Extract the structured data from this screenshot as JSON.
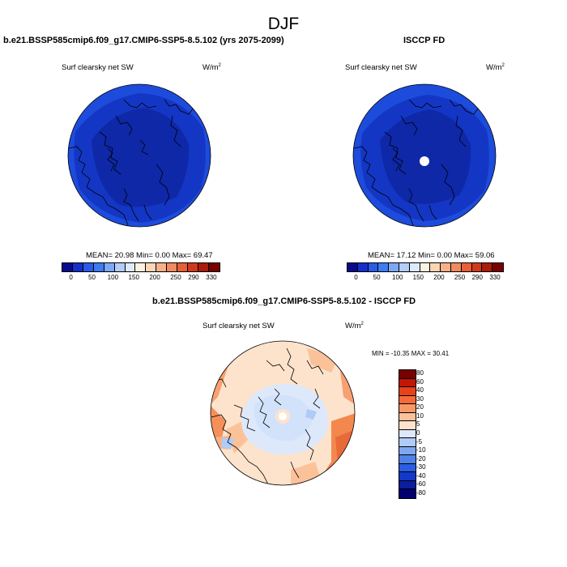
{
  "title": "DJF",
  "panel_left": {
    "title": "b.e21.BSSP585cmip6.f09_g17.CMIP6-SSP5-8.5.102 (yrs 2075-2099)",
    "variable": "Surf clearsky net SW",
    "units": "W/m",
    "units_exp": "2",
    "stats": "MEAN= 20.98  Min=   0.00  Max=  69.47"
  },
  "panel_right": {
    "title": "ISCCP FD",
    "variable": "Surf clearsky net SW",
    "units": "W/m",
    "units_exp": "2",
    "stats": "MEAN= 17.12  Min=   0.00  Max=  59.06"
  },
  "panel_diff": {
    "title": "b.e21.BSSP585cmip6.f09_g17.CMIP6-SSP5-8.5.102 - ISCCP FD",
    "variable": "Surf clearsky net SW",
    "units": "W/m",
    "units_exp": "2",
    "stats": "MIN = -10.35 MAX =  30.41"
  },
  "colorbar_abs": {
    "colors": [
      "#0a0a8c",
      "#1530c8",
      "#2a5ae8",
      "#3d7cf0",
      "#7ea8f5",
      "#b3ccf8",
      "#ddeafb",
      "#fff1e2",
      "#fbd5b4",
      "#f7b08a",
      "#f08a60",
      "#e85e36",
      "#d03a1c",
      "#a81e0a",
      "#780000"
    ],
    "labels": [
      "0",
      "50",
      "100",
      "150",
      "200",
      "250",
      "290",
      "330"
    ]
  },
  "colorbar_diff": {
    "colors": [
      "#780000",
      "#c41608",
      "#e8421a",
      "#f56a3a",
      "#f89868",
      "#fbc29a",
      "#fde3cc",
      "#dde9fb",
      "#b0cbf5",
      "#7ea7ef",
      "#4e82e8",
      "#2a5ee2",
      "#1438c8",
      "#0a1ea0",
      "#000070"
    ],
    "labels": [
      "80",
      "60",
      "40",
      "30",
      "20",
      "10",
      "5",
      "0",
      "-5",
      "-10",
      "-20",
      "-30",
      "-40",
      "-60",
      "-80"
    ]
  }
}
